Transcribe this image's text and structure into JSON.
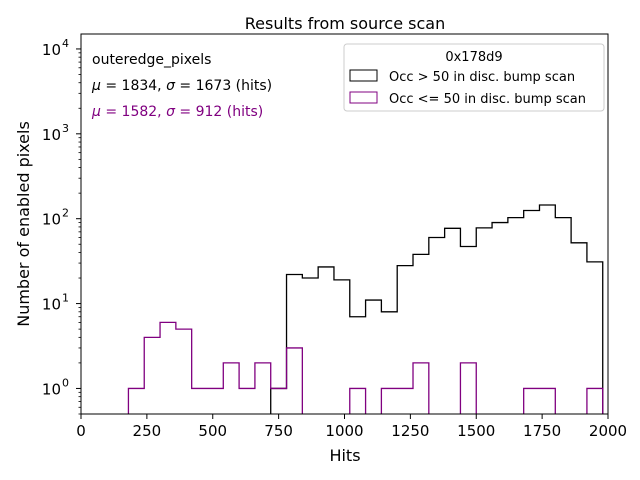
{
  "chart_data": {
    "type": "histogram",
    "title": "Results from source scan",
    "xlabel": "Hits",
    "ylabel": "Number of enabled pixels",
    "xlim": [
      0,
      2000
    ],
    "ylim_log": [
      0.5,
      15000
    ],
    "yscale": "log",
    "x_ticks": [
      0,
      250,
      500,
      750,
      1000,
      1250,
      1500,
      1750,
      2000
    ],
    "x_tick_labels": [
      "0",
      "250",
      "500",
      "750",
      "1000",
      "1250",
      "1500",
      "1750",
      "2000"
    ],
    "y_ticks": [
      1,
      10,
      100,
      1000,
      10000
    ],
    "y_tick_labels": [
      {
        "base": "10",
        "exp": "0"
      },
      {
        "base": "10",
        "exp": "1"
      },
      {
        "base": "10",
        "exp": "2"
      },
      {
        "base": "10",
        "exp": "3"
      },
      {
        "base": "10",
        "exp": "4"
      }
    ],
    "annotations": {
      "group": "outeredge_pixels",
      "stats1": {
        "mu_sym": "μ",
        "mu_text": " = 1834, ",
        "sigma_sym": "σ",
        "sigma_text": " = 1673 (hits)",
        "color": "#000000"
      },
      "stats2": {
        "mu_sym": "μ",
        "mu_text": " = 1582, ",
        "sigma_sym": "σ",
        "sigma_text": " = 912 (hits)",
        "color": "#800080"
      }
    },
    "legend": {
      "title": "0x178d9",
      "placement": "top-right",
      "entries": [
        {
          "label": "Occ > 50 in disc. bump scan",
          "color": "#000000"
        },
        {
          "label": "Occ <= 50 in disc. bump scan",
          "color": "#800080"
        }
      ]
    },
    "series": [
      {
        "name": "Occ > 50 in disc. bump scan",
        "color": "#000000",
        "bins": [
          {
            "x0": 720,
            "x1": 780,
            "v": 1
          },
          {
            "x0": 780,
            "x1": 840,
            "v": 22
          },
          {
            "x0": 840,
            "x1": 900,
            "v": 20
          },
          {
            "x0": 900,
            "x1": 960,
            "v": 27
          },
          {
            "x0": 960,
            "x1": 1020,
            "v": 19
          },
          {
            "x0": 1020,
            "x1": 1080,
            "v": 7
          },
          {
            "x0": 1080,
            "x1": 1140,
            "v": 11
          },
          {
            "x0": 1140,
            "x1": 1200,
            "v": 8
          },
          {
            "x0": 1200,
            "x1": 1260,
            "v": 28
          },
          {
            "x0": 1260,
            "x1": 1320,
            "v": 38
          },
          {
            "x0": 1320,
            "x1": 1380,
            "v": 60
          },
          {
            "x0": 1380,
            "x1": 1440,
            "v": 77
          },
          {
            "x0": 1440,
            "x1": 1500,
            "v": 47
          },
          {
            "x0": 1500,
            "x1": 1560,
            "v": 78
          },
          {
            "x0": 1560,
            "x1": 1620,
            "v": 90
          },
          {
            "x0": 1620,
            "x1": 1680,
            "v": 103
          },
          {
            "x0": 1680,
            "x1": 1740,
            "v": 125
          },
          {
            "x0": 1740,
            "x1": 1800,
            "v": 145
          },
          {
            "x0": 1800,
            "x1": 1860,
            "v": 103
          },
          {
            "x0": 1860,
            "x1": 1920,
            "v": 52
          },
          {
            "x0": 1920,
            "x1": 1980,
            "v": 31
          }
        ]
      },
      {
        "name": "Occ <= 50 in disc. bump scan",
        "color": "#800080",
        "bins": [
          {
            "x0": 180,
            "x1": 240,
            "v": 1
          },
          {
            "x0": 240,
            "x1": 300,
            "v": 4
          },
          {
            "x0": 300,
            "x1": 360,
            "v": 6
          },
          {
            "x0": 360,
            "x1": 420,
            "v": 5
          },
          {
            "x0": 420,
            "x1": 480,
            "v": 1
          },
          {
            "x0": 480,
            "x1": 540,
            "v": 1
          },
          {
            "x0": 540,
            "x1": 600,
            "v": 2
          },
          {
            "x0": 600,
            "x1": 660,
            "v": 1
          },
          {
            "x0": 660,
            "x1": 720,
            "v": 2
          },
          {
            "x0": 720,
            "x1": 780,
            "v": 1
          },
          {
            "x0": 780,
            "x1": 840,
            "v": 3
          },
          {
            "x0": 1020,
            "x1": 1080,
            "v": 1
          },
          {
            "x0": 1140,
            "x1": 1200,
            "v": 1
          },
          {
            "x0": 1200,
            "x1": 1260,
            "v": 1
          },
          {
            "x0": 1260,
            "x1": 1320,
            "v": 2
          },
          {
            "x0": 1440,
            "x1": 1500,
            "v": 2
          },
          {
            "x0": 1680,
            "x1": 1740,
            "v": 1
          },
          {
            "x0": 1740,
            "x1": 1800,
            "v": 1
          },
          {
            "x0": 1920,
            "x1": 1980,
            "v": 1
          }
        ]
      }
    ]
  }
}
